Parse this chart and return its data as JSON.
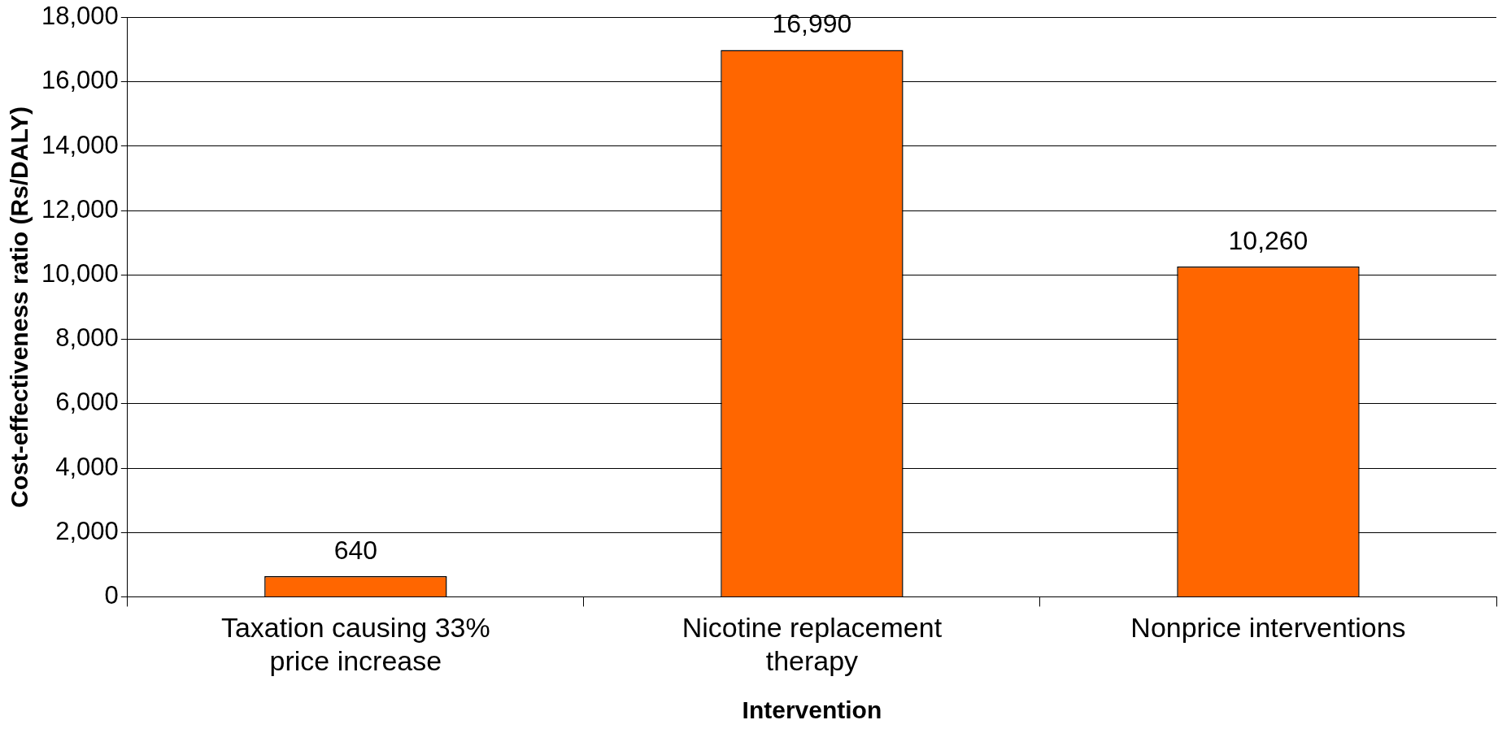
{
  "chart_data": {
    "type": "bar",
    "categories": [
      "Taxation causing 33% price increase",
      "Nicotine replacement therapy",
      "Nonprice interventions"
    ],
    "values": [
      640,
      16990,
      10260
    ],
    "value_labels": [
      "640",
      "16,990",
      "10,260"
    ],
    "color": "#ff6600",
    "xlabel": "Intervention",
    "ylabel": "Cost-effectiveness ratio (Rs/DALY)",
    "ylim": [
      0,
      18000
    ],
    "yticks": [
      0,
      {
        "value": 2000,
        "label": "2,000"
      },
      {
        "value": 4000,
        "label": "4,000"
      },
      {
        "value": 6000,
        "label": "6,000"
      },
      {
        "value": 8000,
        "label": "8,000"
      },
      {
        "value": 10000,
        "label": "10,000"
      },
      {
        "value": 12000,
        "label": "12,000"
      },
      {
        "value": 14000,
        "label": "14,000"
      },
      {
        "value": 16000,
        "label": "16,000"
      },
      {
        "value": 18000,
        "label": "18,000"
      }
    ],
    "grid": "y",
    "legend": false
  }
}
